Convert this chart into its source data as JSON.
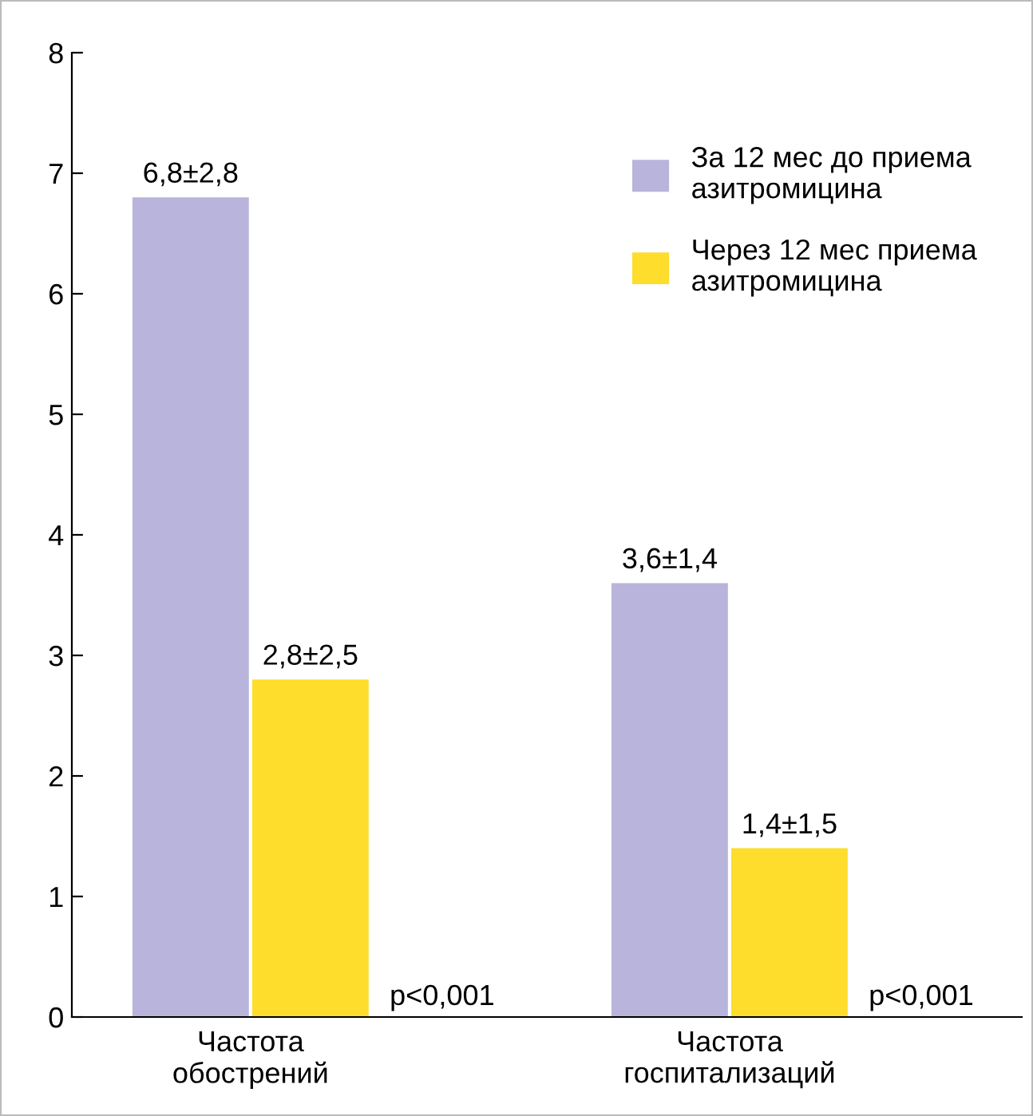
{
  "chart_data": {
    "type": "bar",
    "categories": [
      "Частота\nобострений",
      "Частота\nгоспитализаций"
    ],
    "series": [
      {
        "name": "За 12 мес до приема\nазитромицина",
        "color": "#b8b4db",
        "values": [
          6.8,
          3.6
        ],
        "value_labels": [
          "6,8±2,8",
          "3,6±1,4"
        ]
      },
      {
        "name": "Через 12 мес приема\nазитромицина",
        "color": "#fedd2c",
        "values": [
          2.8,
          1.4
        ],
        "value_labels": [
          "2,8±2,5",
          "1,4±1,5"
        ]
      }
    ],
    "ylim": [
      0,
      8
    ],
    "yticks": [
      0,
      1,
      2,
      3,
      4,
      5,
      6,
      7,
      8
    ],
    "grid": false,
    "legend": "top right",
    "annotations": [
      "p<0,001",
      "p<0,001"
    ]
  }
}
